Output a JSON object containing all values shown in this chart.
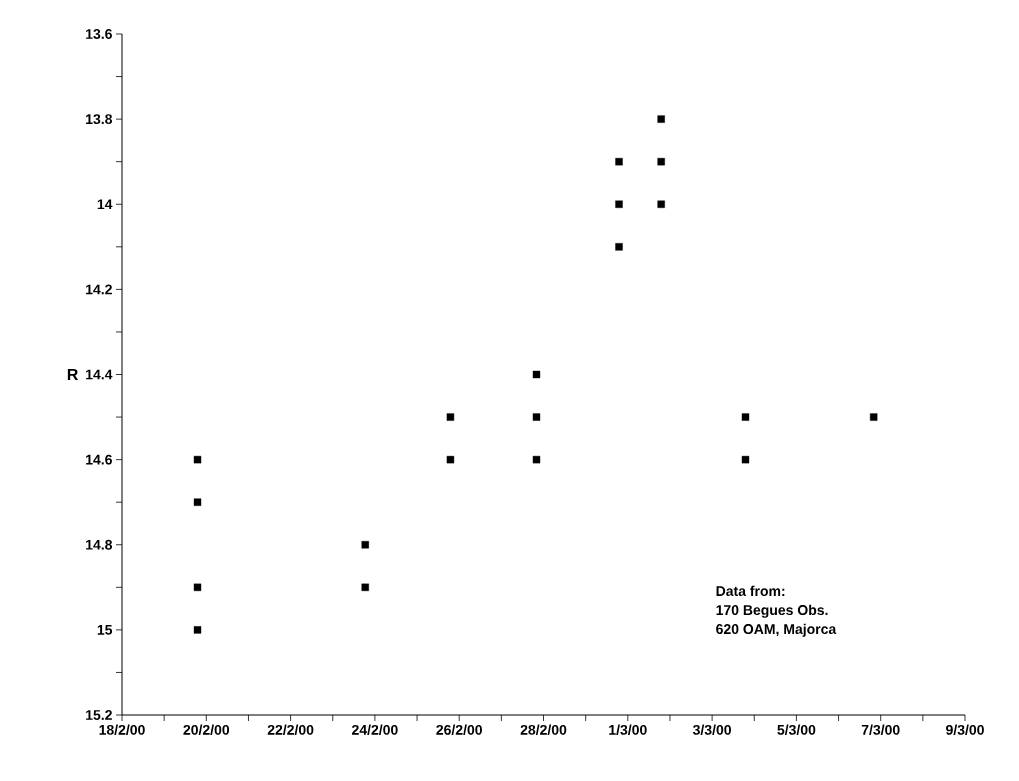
{
  "chart_data": {
    "type": "scatter",
    "ylabel": "R",
    "x": [
      "2000-02-19T19:00",
      "2000-02-19T19:00",
      "2000-02-19T19:00",
      "2000-02-19T19:00",
      "2000-02-23T18:30",
      "2000-02-23T18:30",
      "2000-02-25T19:00",
      "2000-02-25T19:00",
      "2000-02-27T20:00",
      "2000-02-27T20:00",
      "2000-02-27T20:00",
      "2000-02-29T19:00",
      "2000-02-29T19:00",
      "2000-02-29T19:00",
      "2000-03-01T19:00",
      "2000-03-01T19:00",
      "2000-03-01T19:00",
      "2000-03-03T19:00",
      "2000-03-03T19:00",
      "2000-03-06T20:00"
    ],
    "series": [
      {
        "color": "#000000",
        "values": [
          14.6,
          14.7,
          14.9,
          15.0,
          14.8,
          14.9,
          14.5,
          14.6,
          14.4,
          14.5,
          14.6,
          13.9,
          14.0,
          14.1,
          13.8,
          13.9,
          14.0,
          14.5,
          14.6,
          14.5
        ]
      }
    ],
    "xlim": [
      "2000-02-18",
      "2000-03-09"
    ],
    "xticks": [
      {
        "value": "2000-02-18",
        "label": "18/2/00"
      },
      {
        "value": "2000-02-19",
        "label": null
      },
      {
        "value": "2000-02-20",
        "label": "20/2/00"
      },
      {
        "value": "2000-02-21",
        "label": null
      },
      {
        "value": "2000-02-22",
        "label": "22/2/00"
      },
      {
        "value": "2000-02-23",
        "label": null
      },
      {
        "value": "2000-02-24",
        "label": "24/2/00"
      },
      {
        "value": "2000-02-25",
        "label": null
      },
      {
        "value": "2000-02-26",
        "label": "26/2/00"
      },
      {
        "value": "2000-02-27",
        "label": null
      },
      {
        "value": "2000-02-28",
        "label": "28/2/00"
      },
      {
        "value": "2000-02-29",
        "label": null
      },
      {
        "value": "2000-03-01",
        "label": "1/3/00"
      },
      {
        "value": "2000-03-02",
        "label": null
      },
      {
        "value": "2000-03-03",
        "label": "3/3/00"
      },
      {
        "value": "2000-03-04",
        "label": null
      },
      {
        "value": "2000-03-05",
        "label": "5/3/00"
      },
      {
        "value": "2000-03-06",
        "label": null
      },
      {
        "value": "2000-03-07",
        "label": "7/3/00"
      },
      {
        "value": "2000-03-08",
        "label": null
      },
      {
        "value": "2000-03-09",
        "label": "9/3/00"
      }
    ],
    "ylim": [
      15.2,
      13.6
    ],
    "yticks": [
      13.6,
      {
        "value": 13.7,
        "label": null
      },
      13.8,
      {
        "value": 13.9,
        "label": null
      },
      14,
      {
        "value": 14.1,
        "label": null
      },
      14.2,
      {
        "value": 14.3,
        "label": null
      },
      14.4,
      {
        "value": 14.5,
        "label": null
      },
      14.6,
      {
        "value": 14.7,
        "label": null
      },
      14.8,
      {
        "value": 14.9,
        "label": null
      },
      15,
      {
        "value": 15.1,
        "label": null
      },
      15.2
    ],
    "marker": "square",
    "grid": false,
    "annotations": [
      "Data from:",
      "170 Begues Obs.",
      "620 OAM, Majorca"
    ]
  }
}
